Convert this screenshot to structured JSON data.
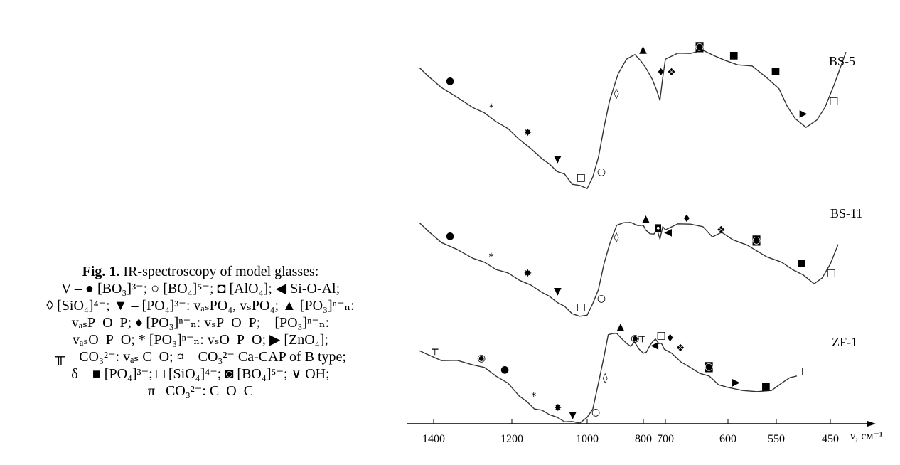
{
  "caption": {
    "title": "Fig. 1.",
    "title_rest": " IR-spectroscopy of model glasses:",
    "legend_lines": [
      "V – ● [BO₃]³⁻; ○ [BO₄]⁵⁻; ◘ [AlO₄]; ◀ Si-O-Al;",
      "◊ [SiO₄]⁴⁻; ▼ – [PO₄]³⁻: vₐₛPO₄, vₛPO₄; ▲ [PO₃]ⁿ⁻ₙ:",
      "vₐₛP–O–P; ♦ [PO₃]ⁿ⁻ₙ: vₛP–O–P; – [PO₃]ⁿ⁻ₙ:",
      "vₐₛO–P–O; * [PO₃]ⁿ⁻ₙ: vₛO–P–O; ▶ [ZnO₄];",
      "╥ – CO₃²⁻: vₐₛ C–O; ¤ – CO₃²⁻ Ca-CAP of B type;",
      "δ – ■ [PO₄]³⁻; □ [SiO₄]⁴⁻; ◙ [BO₄]⁵⁻; ∨ OH;",
      "π –CO₃²⁻: C–O–C"
    ]
  },
  "chart_data": {
    "type": "line",
    "xlabel": "ν, см⁻¹",
    "x_ticks": [
      1400,
      1200,
      1000,
      800,
      700,
      600,
      550,
      450
    ],
    "series": [
      {
        "name": "BS-5",
        "points": [
          [
            1450,
            94
          ],
          [
            1420,
            108
          ],
          [
            1380,
            122
          ],
          [
            1340,
            138
          ],
          [
            1300,
            150
          ],
          [
            1270,
            160
          ],
          [
            1240,
            170
          ],
          [
            1210,
            182
          ],
          [
            1180,
            195
          ],
          [
            1150,
            210
          ],
          [
            1120,
            222
          ],
          [
            1100,
            232
          ],
          [
            1080,
            240
          ],
          [
            1060,
            246
          ],
          [
            1040,
            258
          ],
          [
            1020,
            262
          ],
          [
            1000,
            264
          ],
          [
            980,
            250
          ],
          [
            960,
            220
          ],
          [
            940,
            180
          ],
          [
            920,
            140
          ],
          [
            890,
            105
          ],
          [
            860,
            82
          ],
          [
            830,
            78
          ],
          [
            810,
            84
          ],
          [
            790,
            96
          ],
          [
            760,
            110
          ],
          [
            740,
            128
          ],
          [
            725,
            140
          ],
          [
            712,
            110
          ],
          [
            700,
            82
          ],
          [
            680,
            76
          ],
          [
            660,
            74
          ],
          [
            640,
            72
          ],
          [
            620,
            78
          ],
          [
            605,
            86
          ],
          [
            590,
            90
          ],
          [
            575,
            94
          ],
          [
            560,
            108
          ],
          [
            545,
            126
          ],
          [
            530,
            148
          ],
          [
            515,
            168
          ],
          [
            495,
            178
          ],
          [
            475,
            170
          ],
          [
            460,
            150
          ],
          [
            445,
            120
          ],
          [
            430,
            72
          ]
        ],
        "markers": [
          "●",
          "*",
          "✸",
          "▼",
          "□",
          "○",
          "◊",
          "▲",
          "♦",
          "❖",
          "◙",
          "■",
          "■",
          "▶",
          "□"
        ]
      },
      {
        "name": "BS-11",
        "points": [
          [
            1450,
            312
          ],
          [
            1420,
            326
          ],
          [
            1380,
            340
          ],
          [
            1340,
            352
          ],
          [
            1300,
            362
          ],
          [
            1270,
            370
          ],
          [
            1240,
            378
          ],
          [
            1210,
            385
          ],
          [
            1180,
            393
          ],
          [
            1150,
            402
          ],
          [
            1120,
            410
          ],
          [
            1100,
            418
          ],
          [
            1080,
            424
          ],
          [
            1060,
            432
          ],
          [
            1040,
            440
          ],
          [
            1020,
            446
          ],
          [
            1000,
            442
          ],
          [
            980,
            428
          ],
          [
            960,
            406
          ],
          [
            940,
            372
          ],
          [
            920,
            342
          ],
          [
            895,
            318
          ],
          [
            870,
            312
          ],
          [
            845,
            314
          ],
          [
            820,
            316
          ],
          [
            800,
            318
          ],
          [
            790,
            322
          ],
          [
            770,
            330
          ],
          [
            752,
            328
          ],
          [
            738,
            324
          ],
          [
            725,
            335
          ],
          [
            712,
            320
          ],
          [
            700,
            322
          ],
          [
            680,
            316
          ],
          [
            660,
            314
          ],
          [
            640,
            320
          ],
          [
            625,
            332
          ],
          [
            610,
            328
          ],
          [
            595,
            336
          ],
          [
            580,
            346
          ],
          [
            560,
            360
          ],
          [
            540,
            370
          ],
          [
            520,
            378
          ],
          [
            500,
            388
          ],
          [
            480,
            398
          ],
          [
            465,
            392
          ],
          [
            450,
            370
          ],
          [
            440,
            345
          ]
        ],
        "markers": [
          "●",
          "*",
          "✸",
          "▼",
          "□",
          "○",
          "◊",
          "▲",
          "◘",
          "◀",
          "♦",
          "❖",
          "◙",
          "■",
          "□"
        ]
      },
      {
        "name": "ZF-1",
        "points": [
          [
            1450,
            492
          ],
          [
            1420,
            500
          ],
          [
            1380,
            506
          ],
          [
            1340,
            508
          ],
          [
            1300,
            512
          ],
          [
            1270,
            518
          ],
          [
            1240,
            528
          ],
          [
            1210,
            540
          ],
          [
            1180,
            556
          ],
          [
            1160,
            566
          ],
          [
            1140,
            574
          ],
          [
            1120,
            578
          ],
          [
            1100,
            582
          ],
          [
            1080,
            588
          ],
          [
            1060,
            592
          ],
          [
            1040,
            594
          ],
          [
            1020,
            594
          ],
          [
            1000,
            588
          ],
          [
            980,
            574
          ],
          [
            960,
            540
          ],
          [
            940,
            500
          ],
          [
            925,
            472
          ],
          [
            910,
            468
          ],
          [
            895,
            470
          ],
          [
            880,
            474
          ],
          [
            860,
            484
          ],
          [
            845,
            486
          ],
          [
            832,
            482
          ],
          [
            815,
            490
          ],
          [
            800,
            498
          ],
          [
            786,
            494
          ],
          [
            772,
            488
          ],
          [
            760,
            480
          ],
          [
            745,
            478
          ],
          [
            730,
            482
          ],
          [
            718,
            484
          ],
          [
            705,
            490
          ],
          [
            690,
            498
          ],
          [
            675,
            508
          ],
          [
            660,
            518
          ],
          [
            645,
            524
          ],
          [
            630,
            530
          ],
          [
            615,
            540
          ],
          [
            600,
            546
          ],
          [
            585,
            548
          ],
          [
            570,
            552
          ],
          [
            555,
            548
          ],
          [
            540,
            540
          ],
          [
            525,
            530
          ],
          [
            512,
            530
          ]
        ],
        "markers": [
          "╥",
          "◉",
          "●",
          "*",
          "✸",
          "▼",
          "○",
          "◊",
          "▲",
          "◉",
          "╥",
          "◀",
          "□",
          "♦",
          "❖",
          "◙",
          "▶",
          "■",
          "□"
        ]
      }
    ]
  }
}
